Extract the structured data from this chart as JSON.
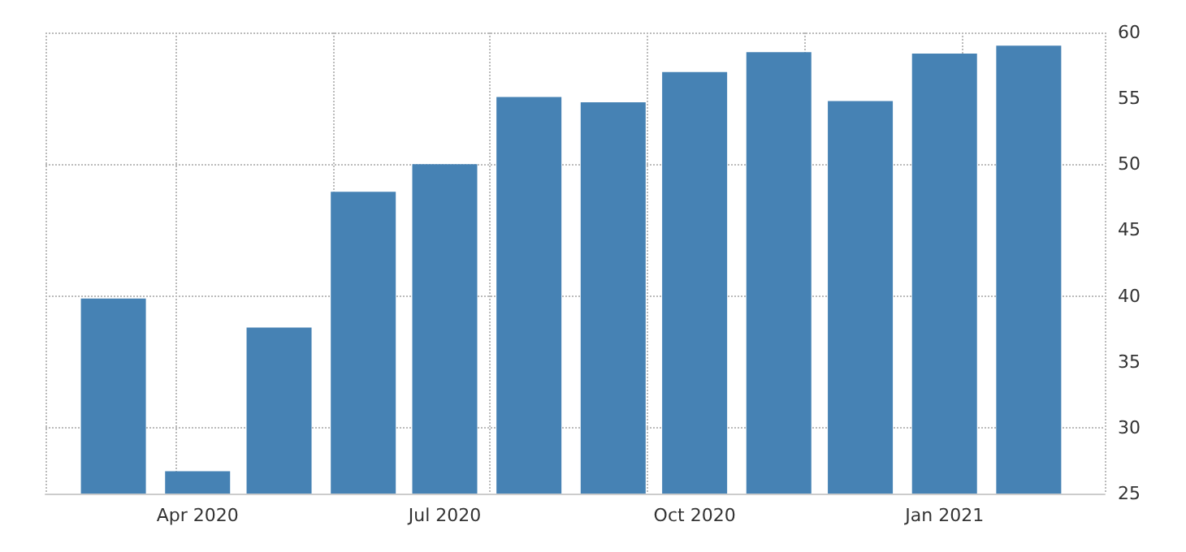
{
  "chart_data": {
    "type": "bar",
    "x": [
      "2020-03",
      "2020-04",
      "2020-05",
      "2020-06",
      "2020-07",
      "2020-08",
      "2020-09",
      "2020-10",
      "2020-11",
      "2020-12",
      "2021-01",
      "2021-02"
    ],
    "values": [
      39.8,
      26.7,
      37.6,
      47.9,
      50.0,
      55.1,
      54.7,
      57.0,
      58.5,
      54.8,
      58.4,
      59.0
    ],
    "color": "#4682b4",
    "xlim": [
      "2020-02-05",
      "2021-03-01"
    ],
    "xticks": [
      {
        "value": "2020-04",
        "label": "Apr 2020"
      },
      {
        "value": "2020-07",
        "label": "Jul 2020"
      },
      {
        "value": "2020-10",
        "label": "Oct 2020"
      },
      {
        "value": "2021-01",
        "label": "Jan 2021"
      }
    ],
    "ylim": [
      25,
      60
    ],
    "yticks": [
      25,
      30,
      35,
      40,
      45,
      50,
      55,
      60
    ],
    "grid": true
  }
}
